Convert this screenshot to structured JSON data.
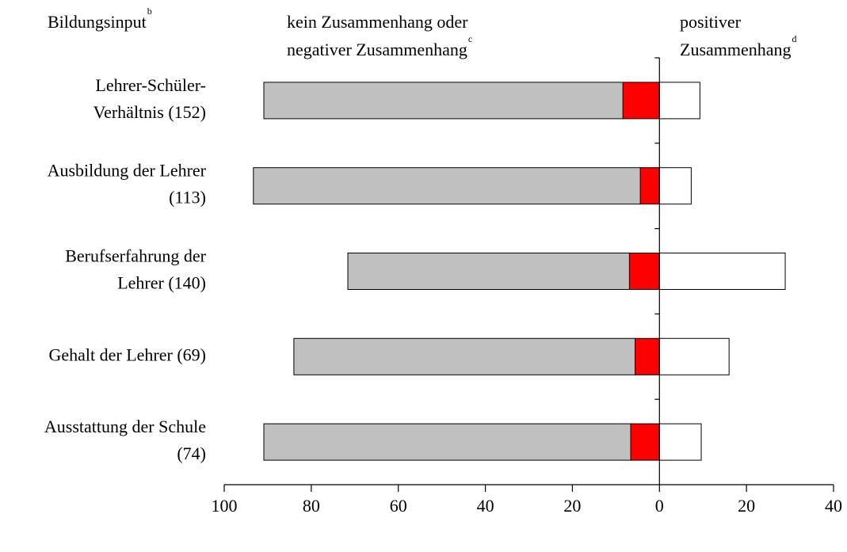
{
  "chart_data": {
    "type": "diverging-bar",
    "headers": [
      {
        "lines": [
          "Bildungsinput"
        ],
        "sup": "b"
      },
      {
        "lines": [
          "kein Zusammenhang oder",
          "negativer Zusammenhang"
        ],
        "sup": "c"
      },
      {
        "lines": [
          "positiver",
          "Zusammenhang"
        ],
        "sup": "d"
      }
    ],
    "categories": [
      [
        "Lehrer-Schüler-",
        "Verhältnis (152)"
      ],
      [
        "Ausbildung der Lehrer",
        "(113)"
      ],
      [
        "Berufserfahrung der",
        "Lehrer (140)"
      ],
      [
        "Gehalt der Lehrer (69)"
      ],
      [
        "Ausstattung der Schule",
        "(74)"
      ]
    ],
    "series": [
      {
        "color": "#ff0000",
        "values": [
          -8.4,
          -4.4,
          -6.9,
          -5.6,
          -6.6
        ]
      },
      {
        "color": "#c0c0c0",
        "values": [
          -82.5,
          -88.9,
          -64.7,
          -78.4,
          -84.3
        ]
      },
      {
        "color": "#ffffff",
        "values": [
          9.3,
          7.3,
          28.9,
          16.0,
          9.6
        ]
      }
    ],
    "xlim": [
      -100,
      40
    ],
    "xticks": [
      {
        "value": -100,
        "label": "100"
      },
      {
        "value": -80,
        "label": "80"
      },
      {
        "value": -60,
        "label": "60"
      },
      {
        "value": -40,
        "label": "40"
      },
      {
        "value": -20,
        "label": "20"
      },
      0,
      20,
      40
    ]
  }
}
